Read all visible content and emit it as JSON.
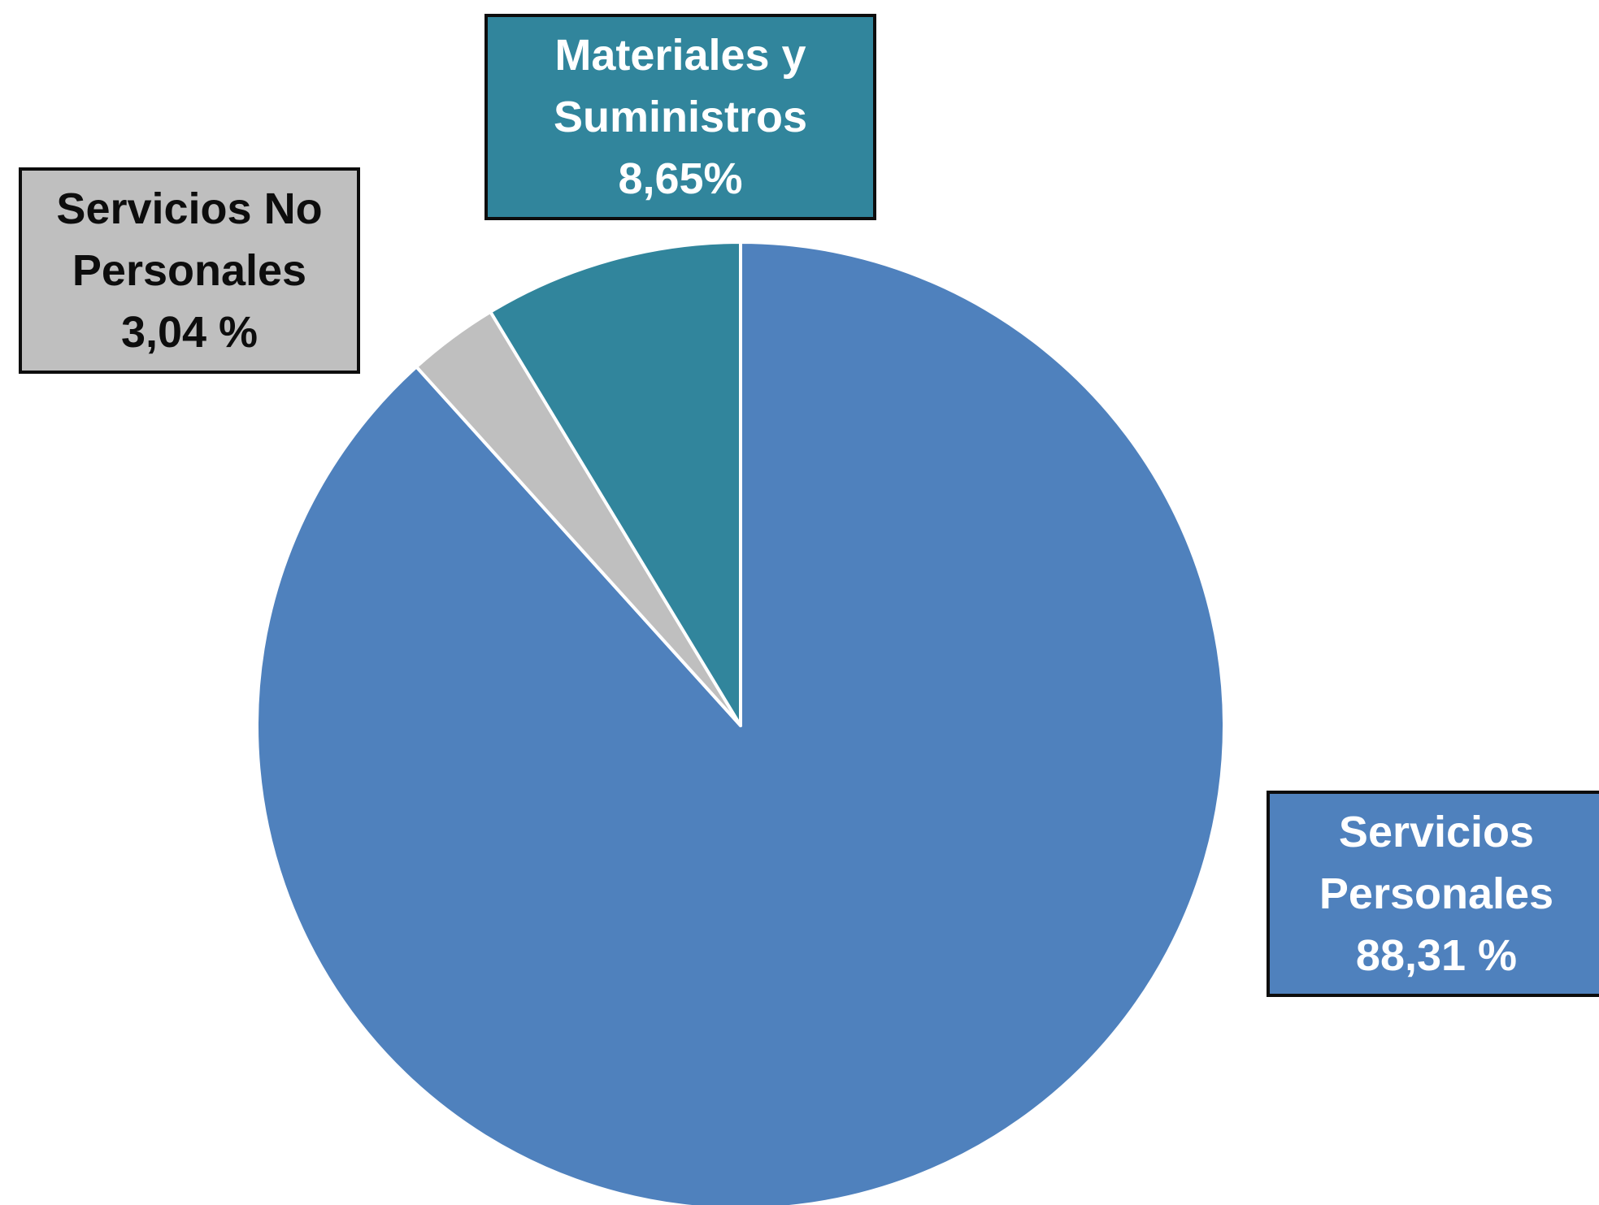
{
  "chart_data": {
    "type": "pie",
    "title": "",
    "slices": [
      {
        "name": "Servicios Personales",
        "label_lines": [
          "Servicios",
          "Personales",
          "88,31 %"
        ],
        "value": 88.31,
        "color": "#4f81bd"
      },
      {
        "name": "Servicios No Personales",
        "label_lines": [
          "Servicios No",
          "Personales",
          "3,04 %"
        ],
        "value": 3.04,
        "color": "#bfbfbf"
      },
      {
        "name": "Materiales y Suministros",
        "label_lines": [
          "Materiales y",
          "Suministros",
          "8,65%"
        ],
        "value": 8.65,
        "color": "#31859c"
      }
    ],
    "legend": "none",
    "slice_order": "clockwise from top: Servicios Personales, then Servicios No Personales, then Materiales y Suministros"
  }
}
